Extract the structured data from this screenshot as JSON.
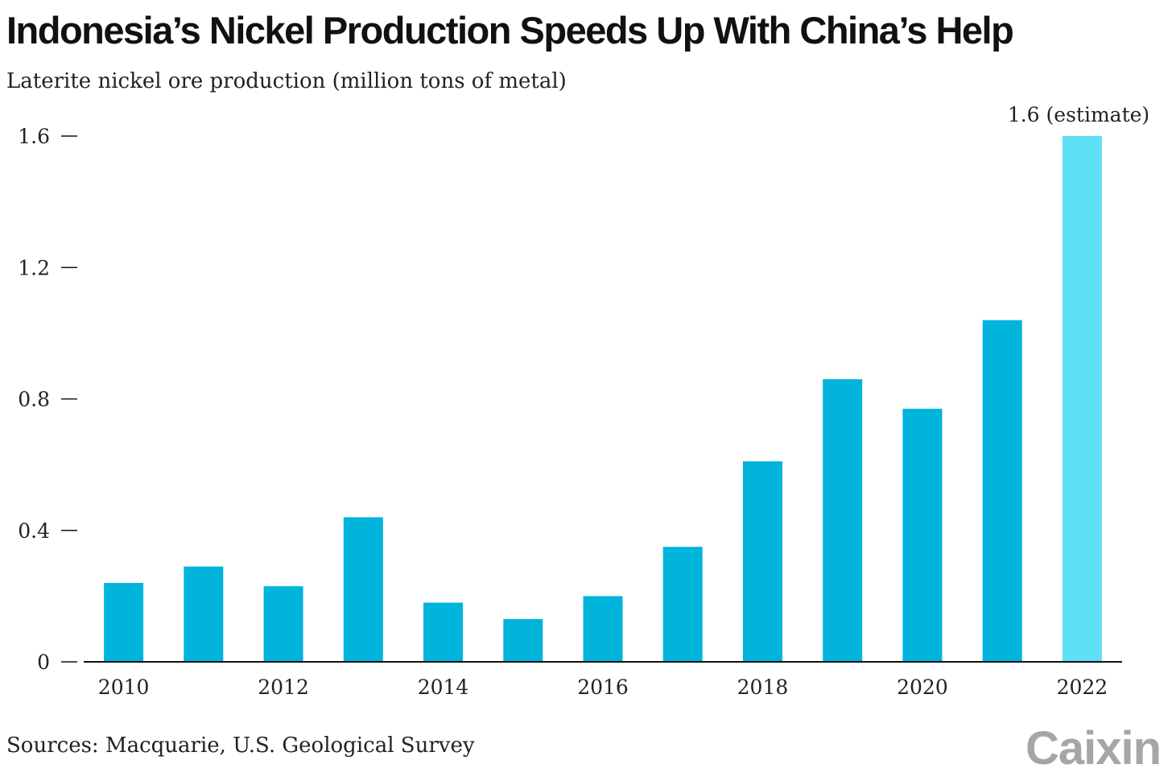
{
  "title": "Indonesia’s Nickel Production Speeds Up With China’s Help",
  "subtitle": "Laterite nickel ore production (million tons of metal)",
  "source": "Sources: Macquarie, U.S. Geological Survey",
  "brand": "Caixin",
  "colors": {
    "bar": "#00b4dc",
    "bar_estimate": "#5ee0f5",
    "axis": "#111111",
    "text": "#222222",
    "brand": "#a6a6a6"
  },
  "chart_data": {
    "type": "bar",
    "title": "Indonesia’s Nickel Production Speeds Up With China’s Help",
    "subtitle": "Laterite nickel ore production (million tons of metal)",
    "xlabel": "",
    "ylabel": "",
    "categories": [
      "2010",
      "2011",
      "2012",
      "2013",
      "2014",
      "2015",
      "2016",
      "2017",
      "2018",
      "2019",
      "2020",
      "2021",
      "2022"
    ],
    "values": [
      0.24,
      0.29,
      0.23,
      0.44,
      0.18,
      0.13,
      0.2,
      0.35,
      0.61,
      0.86,
      0.77,
      1.04,
      1.6
    ],
    "estimate_index": 12,
    "x_tick_labels": [
      "2010",
      "2012",
      "2014",
      "2016",
      "2018",
      "2020",
      "2022"
    ],
    "y_ticks": [
      0,
      0.4,
      0.8,
      1.2,
      1.6
    ],
    "y_tick_labels": [
      "0",
      "0.4",
      "0.8",
      "1.2",
      "1.6"
    ],
    "ylim": [
      0,
      1.6
    ],
    "grid": false,
    "legend": "none",
    "annotation": "1.6 (estimate)"
  }
}
